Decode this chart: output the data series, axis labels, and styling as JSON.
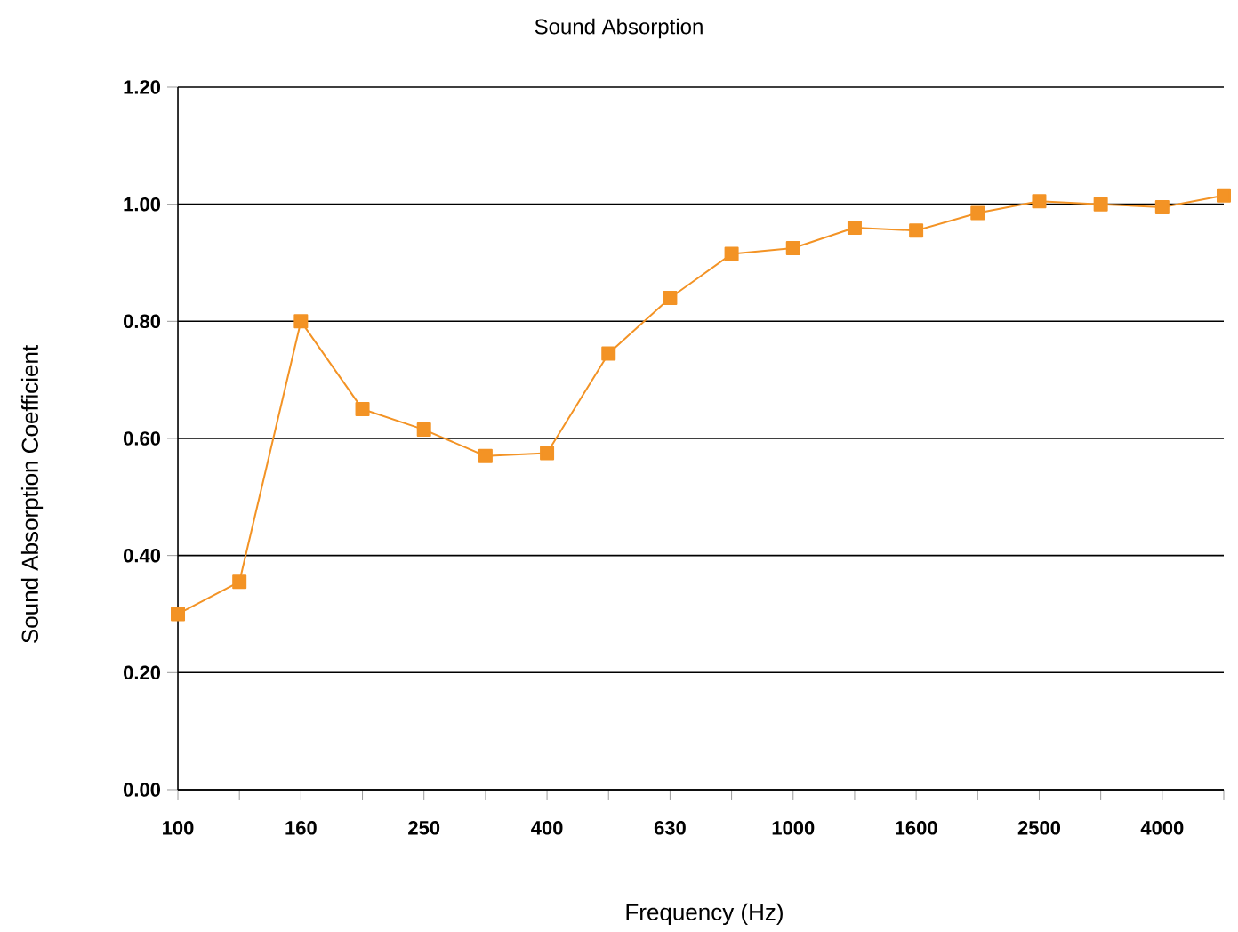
{
  "chart_data": {
    "type": "line",
    "title": "Sound Absorption",
    "xlabel": "Frequency (Hz)",
    "ylabel": "Sound Absorption Coefficient",
    "categories": [
      "100",
      null,
      "160",
      null,
      "250",
      null,
      "400",
      null,
      "630",
      null,
      "1000",
      null,
      "1600",
      null,
      "2500",
      null,
      "4000",
      null
    ],
    "series": [
      {
        "color": "#f39325",
        "values": [
          0.3,
          0.355,
          0.8,
          0.65,
          0.615,
          0.57,
          0.575,
          0.745,
          0.84,
          0.915,
          0.925,
          0.96,
          0.955,
          0.985,
          1.005,
          1.0,
          0.995,
          1.015
        ]
      }
    ],
    "ylim": [
      0,
      1.2
    ],
    "yticks": [
      {
        "value": 0,
        "label": "0.00"
      },
      {
        "value": 0.2,
        "label": "0.20"
      },
      {
        "value": 0.4,
        "label": "0.40"
      },
      {
        "value": 0.6,
        "label": "0.60"
      },
      {
        "value": 0.8,
        "label": "0.80"
      },
      {
        "value": 1.0,
        "label": "1.00"
      },
      {
        "value": 1.2,
        "label": "1.20"
      }
    ],
    "grid": "y",
    "marker": "square",
    "line_style": "solid"
  }
}
